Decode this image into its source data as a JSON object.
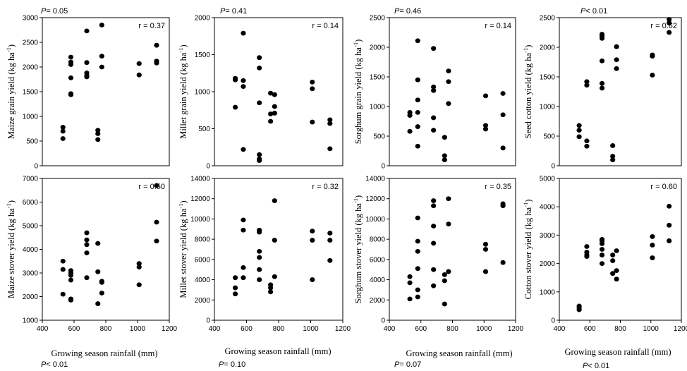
{
  "chart_data": [
    {
      "type": "scatter",
      "ylabel": "Maize grain yield (kg ha",
      "ylabel_sup": "-1",
      "ylabel_close": ")",
      "xlabel": "",
      "r_label": "r = 0.37",
      "p_label": "P= 0.05",
      "xlim": [
        400,
        1200
      ],
      "xticks": [],
      "ylim": [
        0,
        3000
      ],
      "yticks": [
        0,
        500,
        1000,
        1500,
        2000,
        2500,
        3000
      ],
      "points": [
        [
          530,
          550
        ],
        [
          530,
          700
        ],
        [
          530,
          780
        ],
        [
          580,
          1440
        ],
        [
          580,
          1460
        ],
        [
          580,
          1780
        ],
        [
          580,
          2050
        ],
        [
          580,
          2100
        ],
        [
          580,
          2200
        ],
        [
          680,
          1800
        ],
        [
          680,
          1830
        ],
        [
          680,
          1880
        ],
        [
          680,
          2090
        ],
        [
          680,
          2730
        ],
        [
          750,
          530
        ],
        [
          750,
          650
        ],
        [
          750,
          720
        ],
        [
          775,
          2000
        ],
        [
          775,
          2220
        ],
        [
          775,
          2850
        ],
        [
          1010,
          1840
        ],
        [
          1010,
          2070
        ],
        [
          1120,
          2080
        ],
        [
          1120,
          2120
        ],
        [
          1120,
          2440
        ]
      ]
    },
    {
      "type": "scatter",
      "ylabel": "Millet grain yield (kg ha",
      "ylabel_sup": "-1",
      "ylabel_close": ")",
      "xlabel": "",
      "r_label": "r = 0.14",
      "p_label": "P= 0.41",
      "xlim": [
        400,
        1200
      ],
      "xticks": [],
      "ylim": [
        0,
        2000
      ],
      "yticks": [
        0,
        500,
        1000,
        1500,
        2000
      ],
      "points": [
        [
          530,
          790
        ],
        [
          530,
          1160
        ],
        [
          530,
          1180
        ],
        [
          580,
          220
        ],
        [
          580,
          1070
        ],
        [
          580,
          1150
        ],
        [
          580,
          1790
        ],
        [
          680,
          70
        ],
        [
          680,
          90
        ],
        [
          680,
          150
        ],
        [
          680,
          850
        ],
        [
          680,
          1320
        ],
        [
          680,
          1460
        ],
        [
          750,
          600
        ],
        [
          750,
          700
        ],
        [
          750,
          980
        ],
        [
          775,
          710
        ],
        [
          775,
          800
        ],
        [
          775,
          960
        ],
        [
          1010,
          590
        ],
        [
          1010,
          1040
        ],
        [
          1010,
          1130
        ],
        [
          1120,
          230
        ],
        [
          1120,
          570
        ],
        [
          1120,
          620
        ]
      ]
    },
    {
      "type": "scatter",
      "ylabel": "Sorghum grain yield (kg ha",
      "ylabel_sup": "-1",
      "ylabel_close": ")",
      "xlabel": "",
      "r_label": "r = 0.14",
      "p_label": "P= 0.46",
      "xlim": [
        400,
        1200
      ],
      "xticks": [],
      "ylim": [
        0,
        2500
      ],
      "yticks": [
        0,
        500,
        1000,
        1500,
        2000,
        2500
      ],
      "points": [
        [
          530,
          580
        ],
        [
          530,
          850
        ],
        [
          530,
          900
        ],
        [
          580,
          330
        ],
        [
          580,
          660
        ],
        [
          580,
          900
        ],
        [
          580,
          1110
        ],
        [
          580,
          1450
        ],
        [
          580,
          2110
        ],
        [
          680,
          600
        ],
        [
          680,
          810
        ],
        [
          680,
          1270
        ],
        [
          680,
          1330
        ],
        [
          680,
          1980
        ],
        [
          750,
          100
        ],
        [
          750,
          170
        ],
        [
          750,
          480
        ],
        [
          775,
          1050
        ],
        [
          775,
          1420
        ],
        [
          775,
          1600
        ],
        [
          1010,
          620
        ],
        [
          1010,
          680
        ],
        [
          1010,
          1180
        ],
        [
          1120,
          300
        ],
        [
          1120,
          860
        ],
        [
          1120,
          1220
        ]
      ]
    },
    {
      "type": "scatter",
      "ylabel": "Seed cotton yield (kg ha",
      "ylabel_sup": "-1",
      "ylabel_close": ")",
      "xlabel": "",
      "r_label": "r = 0.62",
      "p_label": "P< 0.01",
      "xlim": [
        400,
        1200
      ],
      "xticks": [],
      "ylim": [
        0,
        2500
      ],
      "yticks": [
        0,
        500,
        1000,
        1500,
        2000,
        2500
      ],
      "points": [
        [
          530,
          490
        ],
        [
          530,
          600
        ],
        [
          530,
          680
        ],
        [
          580,
          330
        ],
        [
          580,
          420
        ],
        [
          580,
          1360
        ],
        [
          580,
          1420
        ],
        [
          680,
          1310
        ],
        [
          680,
          1390
        ],
        [
          680,
          1770
        ],
        [
          680,
          2150
        ],
        [
          680,
          2190
        ],
        [
          680,
          2220
        ],
        [
          750,
          100
        ],
        [
          750,
          160
        ],
        [
          750,
          340
        ],
        [
          775,
          1640
        ],
        [
          775,
          1790
        ],
        [
          775,
          2010
        ],
        [
          1010,
          1530
        ],
        [
          1010,
          1850
        ],
        [
          1010,
          1870
        ],
        [
          1120,
          2250
        ],
        [
          1120,
          2410
        ],
        [
          1120,
          2470
        ]
      ]
    },
    {
      "type": "scatter",
      "ylabel": "Maize stover yield (kg ha",
      "ylabel_sup": "-1",
      "ylabel_close": ")",
      "xlabel": "Growing season rainfall (mm)",
      "r_label": "r = 0.50",
      "p_label": "P< 0.01",
      "xlim": [
        400,
        1200
      ],
      "xticks": [
        400,
        600,
        800,
        1000,
        1200
      ],
      "ylim": [
        1000,
        7000
      ],
      "yticks": [
        1000,
        2000,
        3000,
        4000,
        5000,
        6000,
        7000
      ],
      "points": [
        [
          530,
          2100
        ],
        [
          530,
          3150
        ],
        [
          530,
          3500
        ],
        [
          580,
          1850
        ],
        [
          580,
          1900
        ],
        [
          580,
          2700
        ],
        [
          580,
          2900
        ],
        [
          580,
          3000
        ],
        [
          580,
          3100
        ],
        [
          680,
          2800
        ],
        [
          680,
          3850
        ],
        [
          680,
          4200
        ],
        [
          680,
          4400
        ],
        [
          680,
          4700
        ],
        [
          750,
          1700
        ],
        [
          750,
          3050
        ],
        [
          750,
          4250
        ],
        [
          775,
          2150
        ],
        [
          775,
          2600
        ],
        [
          775,
          2650
        ],
        [
          1010,
          2500
        ],
        [
          1010,
          3250
        ],
        [
          1010,
          3400
        ],
        [
          1120,
          4350
        ],
        [
          1120,
          5150
        ],
        [
          1120,
          6700
        ]
      ]
    },
    {
      "type": "scatter",
      "ylabel": "Millet stover yield (kg ha",
      "ylabel_sup": "-1",
      "ylabel_close": ")",
      "xlabel": "Growing season rainfall (mm)",
      "r_label": "r = 0.32",
      "p_label": "P= 0.10",
      "xlim": [
        400,
        1200
      ],
      "xticks": [
        400,
        600,
        800,
        1000,
        1200
      ],
      "ylim": [
        0,
        14000
      ],
      "yticks": [
        0,
        2000,
        4000,
        6000,
        8000,
        10000,
        12000,
        14000
      ],
      "points": [
        [
          530,
          2600
        ],
        [
          530,
          3200
        ],
        [
          530,
          4200
        ],
        [
          580,
          4200
        ],
        [
          580,
          5200
        ],
        [
          580,
          8900
        ],
        [
          580,
          9900
        ],
        [
          680,
          4000
        ],
        [
          680,
          5000
        ],
        [
          680,
          6200
        ],
        [
          680,
          6800
        ],
        [
          680,
          8700
        ],
        [
          680,
          8900
        ],
        [
          750,
          2800
        ],
        [
          750,
          3200
        ],
        [
          750,
          3500
        ],
        [
          775,
          4300
        ],
        [
          775,
          7900
        ],
        [
          775,
          11800
        ],
        [
          1010,
          4000
        ],
        [
          1010,
          7900
        ],
        [
          1010,
          8800
        ],
        [
          1120,
          5900
        ],
        [
          1120,
          7900
        ],
        [
          1120,
          8600
        ]
      ]
    },
    {
      "type": "scatter",
      "ylabel": "Sorghum stover yield (kg ha",
      "ylabel_sup": "-1",
      "ylabel_close": ")",
      "xlabel": "Growing season rainfall (mm)",
      "r_label": "r = 0.35",
      "p_label": "P= 0.07",
      "xlim": [
        400,
        1200
      ],
      "xticks": [
        400,
        600,
        800,
        1000,
        1200
      ],
      "ylim": [
        0,
        14000
      ],
      "yticks": [
        0,
        2000,
        4000,
        6000,
        8000,
        10000,
        12000,
        14000
      ],
      "points": [
        [
          530,
          2100
        ],
        [
          530,
          3700
        ],
        [
          530,
          4300
        ],
        [
          580,
          2300
        ],
        [
          580,
          3000
        ],
        [
          580,
          5100
        ],
        [
          580,
          6800
        ],
        [
          580,
          7800
        ],
        [
          580,
          10100
        ],
        [
          680,
          3400
        ],
        [
          680,
          5000
        ],
        [
          680,
          7600
        ],
        [
          680,
          9300
        ],
        [
          680,
          11300
        ],
        [
          680,
          11800
        ],
        [
          750,
          1600
        ],
        [
          750,
          3900
        ],
        [
          750,
          4500
        ],
        [
          775,
          4800
        ],
        [
          775,
          9500
        ],
        [
          775,
          12000
        ],
        [
          1010,
          4800
        ],
        [
          1010,
          7000
        ],
        [
          1010,
          7500
        ],
        [
          1120,
          5700
        ],
        [
          1120,
          11300
        ],
        [
          1120,
          11500
        ]
      ]
    },
    {
      "type": "scatter",
      "ylabel": "Cotton stover yield (kg ha",
      "ylabel_sup": "-1",
      "ylabel_close": ")",
      "xlabel": "Growing season rainfall (mm)",
      "r_label": "r = 0.60",
      "p_label": "P< 0.01",
      "xlim": [
        400,
        1200
      ],
      "xticks": [
        400,
        600,
        800,
        1000,
        1200
      ],
      "ylim": [
        0,
        5000
      ],
      "yticks": [
        0,
        1000,
        2000,
        3000,
        4000,
        5000
      ],
      "points": [
        [
          530,
          370
        ],
        [
          530,
          440
        ],
        [
          530,
          500
        ],
        [
          580,
          2250
        ],
        [
          580,
          2300
        ],
        [
          580,
          2400
        ],
        [
          580,
          2600
        ],
        [
          680,
          2000
        ],
        [
          680,
          2300
        ],
        [
          680,
          2500
        ],
        [
          680,
          2700
        ],
        [
          680,
          2800
        ],
        [
          680,
          2850
        ],
        [
          750,
          1650
        ],
        [
          750,
          2100
        ],
        [
          750,
          2300
        ],
        [
          775,
          1450
        ],
        [
          775,
          1750
        ],
        [
          775,
          2450
        ],
        [
          1010,
          2200
        ],
        [
          1010,
          2650
        ],
        [
          1010,
          2950
        ],
        [
          1120,
          2800
        ],
        [
          1120,
          3350
        ],
        [
          1120,
          4020
        ]
      ]
    }
  ]
}
